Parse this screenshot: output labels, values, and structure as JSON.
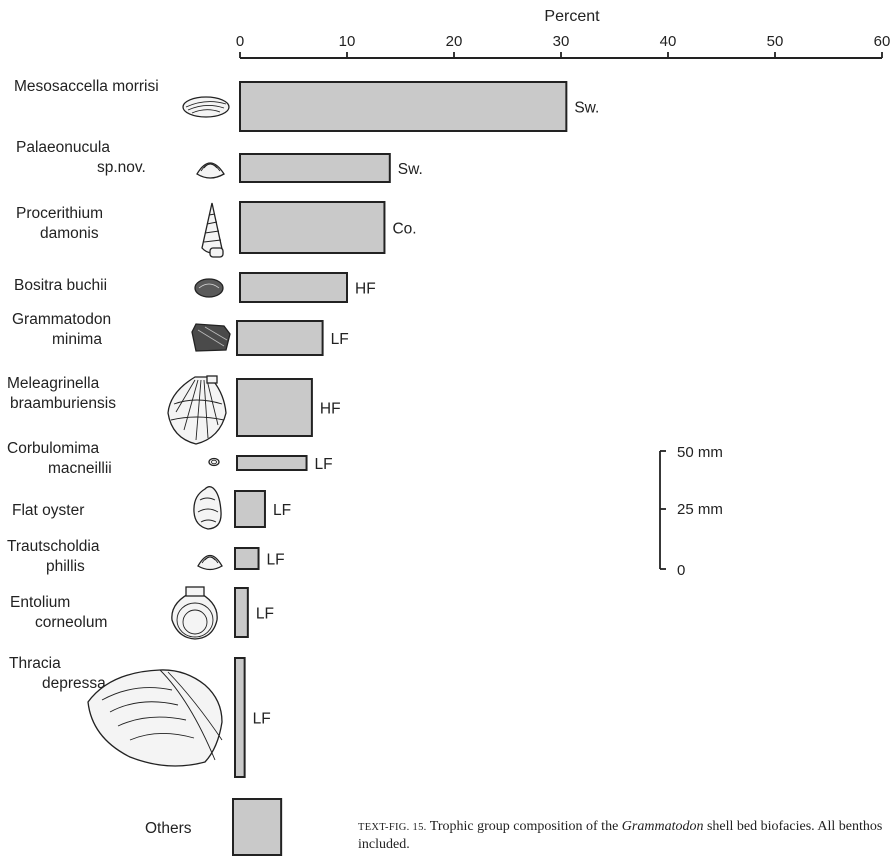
{
  "chart_data": {
    "type": "bar",
    "orientation": "horizontal",
    "xlabel": "Percent",
    "xlim": [
      0,
      60
    ],
    "xticks": [
      0,
      10,
      20,
      30,
      40,
      50,
      60
    ],
    "categories": [
      {
        "lines": [
          "Mesosaccella  morrisi"
        ],
        "icon": "nuculid-shell-icon"
      },
      {
        "lines": [
          "Palaeonucula",
          "sp.nov."
        ],
        "icon": "small-clam-icon"
      },
      {
        "lines": [
          "Procerithium",
          "damonis"
        ],
        "icon": "gastropod-icon"
      },
      {
        "lines": [
          "Bositra  buchii"
        ],
        "icon": "dark-bivalve-icon"
      },
      {
        "lines": [
          "Grammatodon",
          "minima"
        ],
        "icon": "ark-shell-icon"
      },
      {
        "lines": [
          "Meleagrinella",
          "braamburiensis"
        ],
        "icon": "pteriid-shell-icon"
      },
      {
        "lines": [
          "Corbulomima",
          "macneillii"
        ],
        "icon": "tiny-clam-icon"
      },
      {
        "lines": [
          "Flat  oyster"
        ],
        "icon": "oyster-icon"
      },
      {
        "lines": [
          "Trautscholdia",
          "phillis"
        ],
        "icon": "small-clam-icon"
      },
      {
        "lines": [
          "Entolium",
          "corneolum"
        ],
        "icon": "scallop-icon"
      },
      {
        "lines": [
          "Thracia",
          "depressa"
        ],
        "icon": "large-clam-icon"
      },
      {
        "lines": [
          "Others"
        ],
        "icon": ""
      }
    ],
    "values": [
      30.5,
      14,
      13.5,
      10,
      8,
      7,
      6.5,
      2.8,
      2.2,
      1.2,
      0.9,
      4.5
    ],
    "trophic_groups": [
      "Sw.",
      "Sw.",
      "Co.",
      "HF",
      "LF",
      "HF",
      "LF",
      "LF",
      "LF",
      "LF",
      "LF",
      ""
    ],
    "scale_bar": {
      "labels": [
        "50 mm",
        "25 mm",
        "0"
      ],
      "values_mm": [
        50,
        25,
        0
      ]
    }
  },
  "caption": {
    "prefix": "TEXT-FIG. 15.",
    "text1": " Trophic group composition of the ",
    "italic": "Grammatodon",
    "text2": " shell bed biofacies. All benthos included."
  }
}
